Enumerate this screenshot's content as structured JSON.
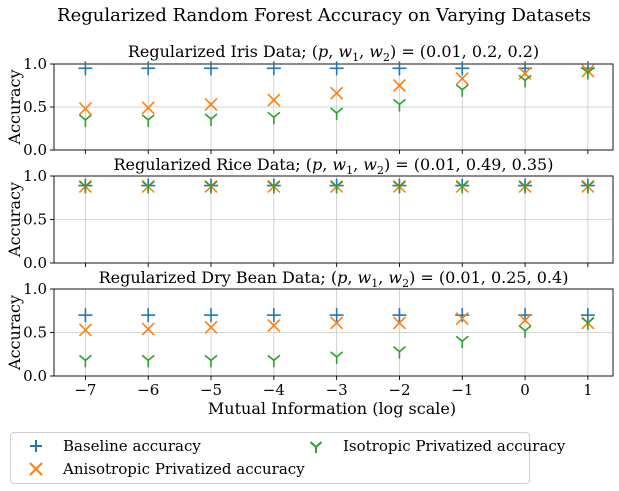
{
  "figure": {
    "title": "Regularized Random Forest Accuracy on Varying Datasets"
  },
  "colors": {
    "baseline": "#1f77b4",
    "anisotropic": "#ff7f0e",
    "isotropic": "#2ca02c"
  },
  "legend": {
    "baseline": "Baseline accuracy",
    "anisotropic": "Anisotropic Privatized accuracy",
    "isotropic": "Isotropic Privatized accuracy"
  },
  "chart_data": [
    {
      "type": "scatter",
      "title_prefix": "Regularized Iris Data; ",
      "params": "(p, w1, w2) = (0.01, 0.2, 0.2)",
      "param_values": [
        "0.01",
        "0.2",
        "0.2"
      ],
      "xlabel": "",
      "ylabel": "Accuracy",
      "x": [
        -7,
        -6,
        -5,
        -4,
        -3,
        -2,
        -1,
        0,
        1
      ],
      "xlim": [
        -7.5,
        1.4
      ],
      "ylim": [
        0,
        1
      ],
      "yticks": [
        "0.0",
        "0.5",
        "1.0"
      ],
      "grid": true,
      "series": [
        {
          "name": "Baseline accuracy",
          "marker": "+",
          "values": [
            0.95,
            0.95,
            0.95,
            0.95,
            0.95,
            0.95,
            0.95,
            0.95,
            0.95
          ]
        },
        {
          "name": "Anisotropic Privatized accuracy",
          "marker": "x",
          "values": [
            0.48,
            0.49,
            0.53,
            0.58,
            0.66,
            0.75,
            0.83,
            0.89,
            0.92
          ]
        },
        {
          "name": "Isotropic Privatized accuracy",
          "marker": "tri_down",
          "values": [
            0.35,
            0.35,
            0.36,
            0.38,
            0.43,
            0.53,
            0.7,
            0.81,
            0.9
          ]
        }
      ]
    },
    {
      "type": "scatter",
      "title_prefix": "Regularized Rice Data; ",
      "params": "(p, w1, w2) = (0.01, 0.49, 0.35)",
      "param_values": [
        "0.01",
        "0.49",
        "0.35"
      ],
      "xlabel": "",
      "ylabel": "Accuracy",
      "x": [
        -7,
        -6,
        -5,
        -4,
        -3,
        -2,
        -1,
        0,
        1
      ],
      "xlim": [
        -7.5,
        1.4
      ],
      "ylim": [
        0,
        1
      ],
      "yticks": [
        "0.0",
        "0.5",
        "1.0"
      ],
      "grid": true,
      "series": [
        {
          "name": "Baseline accuracy",
          "marker": "+",
          "values": [
            0.89,
            0.89,
            0.89,
            0.89,
            0.89,
            0.89,
            0.89,
            0.89,
            0.89
          ]
        },
        {
          "name": "Anisotropic Privatized accuracy",
          "marker": "x",
          "values": [
            0.88,
            0.88,
            0.88,
            0.88,
            0.88,
            0.88,
            0.88,
            0.88,
            0.88
          ]
        },
        {
          "name": "Isotropic Privatized accuracy",
          "marker": "tri_down",
          "values": [
            0.88,
            0.88,
            0.88,
            0.88,
            0.88,
            0.88,
            0.88,
            0.88,
            0.88
          ]
        }
      ]
    },
    {
      "type": "scatter",
      "title_prefix": "Regularized Dry Bean Data; ",
      "params": "(p, w1, w2) = (0.01, 0.25, 0.4)",
      "param_values": [
        "0.01",
        "0.25",
        "0.4"
      ],
      "xlabel": "Mutual Information (log scale)",
      "ylabel": "Accuracy",
      "x": [
        -7,
        -6,
        -5,
        -4,
        -3,
        -2,
        -1,
        0,
        1
      ],
      "xticks": [
        "−7",
        "−6",
        "−5",
        "−4",
        "−3",
        "−2",
        "−1",
        "0",
        "1"
      ],
      "xlim": [
        -7.5,
        1.4
      ],
      "ylim": [
        0,
        1
      ],
      "yticks": [
        "0.0",
        "0.5",
        "1.0"
      ],
      "grid": true,
      "series": [
        {
          "name": "Baseline accuracy",
          "marker": "+",
          "values": [
            0.7,
            0.7,
            0.7,
            0.7,
            0.7,
            0.7,
            0.7,
            0.7,
            0.7
          ]
        },
        {
          "name": "Anisotropic Privatized accuracy",
          "marker": "x",
          "values": [
            0.53,
            0.54,
            0.56,
            0.58,
            0.61,
            0.61,
            0.66,
            0.64,
            0.61
          ]
        },
        {
          "name": "Isotropic Privatized accuracy",
          "marker": "tri_down",
          "values": [
            0.18,
            0.18,
            0.18,
            0.18,
            0.22,
            0.28,
            0.4,
            0.52,
            0.61
          ]
        }
      ]
    }
  ]
}
